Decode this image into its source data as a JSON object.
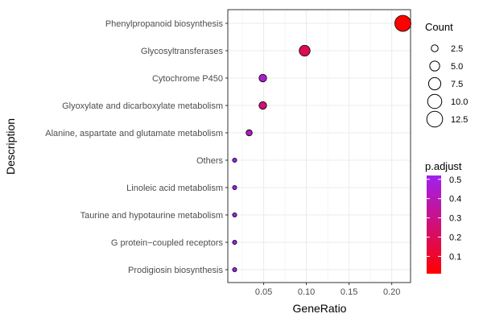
{
  "chart_data": {
    "type": "scatter",
    "xlabel": "GeneRatio",
    "ylabel": "Description",
    "xlim": [
      0.008,
      0.222
    ],
    "x_ticks": [
      0.05,
      0.1,
      0.15,
      0.2
    ],
    "x_tick_labels": [
      "0.05",
      "0.10",
      "0.15",
      "0.20"
    ],
    "grid": true,
    "categories": [
      "Phenylpropanoid biosynthesis",
      "Glycosyltransferases",
      "Cytochrome P450",
      "Glyoxylate and dicarboxylate metabolism",
      "Alanine, aspartate and glutamate metabolism",
      "Others",
      "Linoleic acid metabolism",
      "Taurine and hypotaurine metabolism",
      "G protein−coupled receptors",
      "Prodigiosin biosynthesis"
    ],
    "points": [
      {
        "description": "Phenylpropanoid biosynthesis",
        "gene_ratio": 0.213,
        "count": 13,
        "p_adjust": 0.01
      },
      {
        "description": "Glycosyltransferases",
        "gene_ratio": 0.098,
        "count": 6,
        "p_adjust": 0.18
      },
      {
        "description": "Cytochrome P450",
        "gene_ratio": 0.049,
        "count": 3,
        "p_adjust": 0.45
      },
      {
        "description": "Glyoxylate and dicarboxylate metabolism",
        "gene_ratio": 0.049,
        "count": 3,
        "p_adjust": 0.26
      },
      {
        "description": "Alanine, aspartate and glutamate metabolism",
        "gene_ratio": 0.033,
        "count": 2,
        "p_adjust": 0.42
      },
      {
        "description": "Others",
        "gene_ratio": 0.016,
        "count": 1,
        "p_adjust": 0.52
      },
      {
        "description": "Linoleic acid metabolism",
        "gene_ratio": 0.016,
        "count": 1,
        "p_adjust": 0.52
      },
      {
        "description": "Taurine and hypotaurine metabolism",
        "gene_ratio": 0.016,
        "count": 1,
        "p_adjust": 0.52
      },
      {
        "description": "G protein−coupled receptors",
        "gene_ratio": 0.016,
        "count": 1,
        "p_adjust": 0.52
      },
      {
        "description": "Prodigiosin biosynthesis",
        "gene_ratio": 0.016,
        "count": 1,
        "p_adjust": 0.52
      }
    ],
    "size_legend": {
      "title": "Count",
      "values": [
        2.5,
        5.0,
        7.5,
        10.0,
        12.5
      ],
      "labels": [
        "2.5",
        "5.0",
        "7.5",
        "10.0",
        "12.5"
      ],
      "range": [
        1,
        13
      ]
    },
    "color_legend": {
      "title": "p.adjust",
      "range": [
        0.01,
        0.52
      ],
      "ticks": [
        0.1,
        0.2,
        0.3,
        0.4,
        0.5
      ],
      "tick_labels": [
        "0.1",
        "0.2",
        "0.3",
        "0.4",
        "0.5"
      ],
      "low_color": "#ff0000",
      "high_color": "#a020f0"
    },
    "colors": {
      "panel_bg": "#ffffff",
      "grid": "#ebebeb",
      "point_outline": "#000000"
    }
  }
}
